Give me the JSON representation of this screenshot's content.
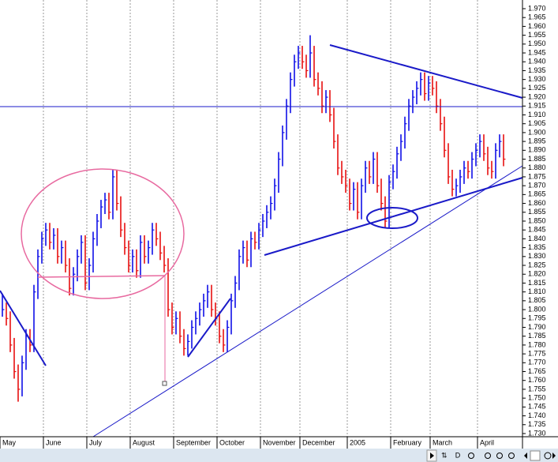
{
  "chart_data": {
    "type": "ohlc",
    "categories": [
      "May",
      null,
      null,
      null,
      null,
      null,
      null,
      null,
      null,
      null,
      null,
      "June",
      null,
      null,
      null,
      null,
      null,
      null,
      null,
      null,
      null,
      null,
      "July",
      null,
      null,
      null,
      null,
      null,
      null,
      null,
      null,
      null,
      null,
      "August",
      null,
      null,
      null,
      null,
      null,
      null,
      null,
      null,
      null,
      null,
      "September",
      null,
      null,
      null,
      null,
      null,
      null,
      null,
      null,
      null,
      null,
      "October",
      null,
      null,
      null,
      null,
      null,
      null,
      null,
      null,
      null,
      null,
      "November",
      null,
      null,
      null,
      null,
      null,
      null,
      null,
      null,
      null,
      "December",
      null,
      null,
      null,
      null,
      null,
      null,
      null,
      null,
      null,
      null,
      null,
      "2005",
      null,
      null,
      null,
      null,
      null,
      null,
      null,
      null,
      null,
      null,
      "February",
      null,
      null,
      null,
      null,
      null,
      null,
      null,
      null,
      null,
      "March",
      null,
      null,
      null,
      null,
      null,
      null,
      null,
      null,
      null,
      null,
      null,
      "April",
      null,
      null,
      null,
      null,
      null,
      null
    ],
    "high": [
      1.809,
      1.804,
      1.799,
      1.784,
      1.769,
      1.774,
      1.789,
      1.789,
      1.814,
      1.834,
      1.844,
      1.849,
      1.849,
      1.846,
      1.846,
      1.839,
      1.839,
      1.829,
      1.824,
      1.834,
      1.842,
      1.842,
      1.829,
      1.844,
      1.854,
      1.862,
      1.866,
      1.866,
      1.879,
      1.879,
      1.864,
      1.849,
      1.839,
      1.834,
      1.834,
      1.842,
      1.842,
      1.839,
      1.849,
      1.849,
      1.844,
      1.836,
      1.829,
      1.804,
      1.799,
      1.799,
      1.789,
      1.786,
      1.794,
      1.799,
      1.804,
      1.809,
      1.814,
      1.814,
      1.804,
      1.799,
      1.789,
      1.794,
      1.809,
      1.819,
      1.834,
      1.839,
      1.839,
      1.844,
      1.844,
      1.849,
      1.854,
      1.859,
      1.864,
      1.874,
      1.889,
      1.904,
      1.919,
      1.934,
      1.944,
      1.949,
      1.949,
      1.944,
      1.955,
      1.949,
      1.934,
      1.929,
      1.924,
      1.924,
      1.914,
      1.899,
      1.884,
      1.879,
      1.874,
      1.872,
      1.872,
      1.874,
      1.884,
      1.884,
      1.889,
      1.889,
      1.874,
      1.864,
      1.876,
      1.882,
      1.892,
      1.899,
      1.909,
      1.919,
      1.924,
      1.929,
      1.934,
      1.934,
      1.932,
      1.932,
      1.929,
      1.919,
      1.909,
      1.894,
      1.879,
      1.874,
      1.879,
      1.884,
      1.884,
      1.889,
      1.894,
      1.899,
      1.899,
      1.892,
      1.884,
      1.894,
      1.899,
      1.899
    ],
    "low": [
      1.796,
      1.791,
      1.776,
      1.761,
      1.748,
      1.751,
      1.766,
      1.776,
      1.776,
      1.806,
      1.826,
      1.836,
      1.834,
      1.834,
      1.826,
      1.826,
      1.821,
      1.808,
      1.808,
      1.816,
      1.826,
      1.811,
      1.811,
      1.821,
      1.836,
      1.846,
      1.854,
      1.851,
      1.851,
      1.856,
      1.841,
      1.831,
      1.821,
      1.821,
      1.818,
      1.818,
      1.826,
      1.826,
      1.831,
      1.836,
      1.828,
      1.821,
      1.796,
      1.786,
      1.786,
      1.781,
      1.774,
      1.774,
      1.778,
      1.786,
      1.791,
      1.796,
      1.801,
      1.796,
      1.791,
      1.781,
      1.776,
      1.776,
      1.786,
      1.801,
      1.811,
      1.826,
      1.824,
      1.824,
      1.834,
      1.834,
      1.841,
      1.846,
      1.851,
      1.856,
      1.866,
      1.881,
      1.896,
      1.911,
      1.926,
      1.936,
      1.936,
      1.931,
      1.931,
      1.926,
      1.921,
      1.911,
      1.911,
      1.906,
      1.891,
      1.876,
      1.871,
      1.866,
      1.856,
      1.856,
      1.851,
      1.851,
      1.866,
      1.871,
      1.871,
      1.866,
      1.856,
      1.846,
      1.846,
      1.868,
      1.874,
      1.884,
      1.891,
      1.901,
      1.911,
      1.916,
      1.921,
      1.918,
      1.918,
      1.921,
      1.911,
      1.901,
      1.886,
      1.871,
      1.864,
      1.864,
      1.866,
      1.871,
      1.874,
      1.874,
      1.881,
      1.886,
      1.884,
      1.876,
      1.874,
      1.874,
      1.886,
      1.881
    ],
    "close": [
      1.8,
      1.795,
      1.78,
      1.765,
      1.755,
      1.77,
      1.785,
      1.78,
      1.81,
      1.83,
      1.84,
      1.845,
      1.838,
      1.842,
      1.83,
      1.835,
      1.825,
      1.812,
      1.82,
      1.83,
      1.838,
      1.815,
      1.825,
      1.84,
      1.85,
      1.858,
      1.862,
      1.855,
      1.875,
      1.86,
      1.845,
      1.835,
      1.825,
      1.83,
      1.822,
      1.838,
      1.83,
      1.835,
      1.845,
      1.84,
      1.832,
      1.825,
      1.8,
      1.79,
      1.795,
      1.785,
      1.778,
      1.782,
      1.79,
      1.795,
      1.8,
      1.805,
      1.81,
      1.8,
      1.795,
      1.785,
      1.78,
      1.79,
      1.805,
      1.815,
      1.83,
      1.835,
      1.828,
      1.84,
      1.838,
      1.845,
      1.85,
      1.855,
      1.86,
      1.87,
      1.885,
      1.9,
      1.915,
      1.93,
      1.94,
      1.945,
      1.94,
      1.935,
      1.945,
      1.93,
      1.925,
      1.915,
      1.92,
      1.91,
      1.895,
      1.88,
      1.875,
      1.87,
      1.86,
      1.868,
      1.855,
      1.87,
      1.88,
      1.875,
      1.885,
      1.87,
      1.86,
      1.85,
      1.872,
      1.878,
      1.888,
      1.895,
      1.905,
      1.915,
      1.92,
      1.925,
      1.93,
      1.922,
      1.928,
      1.925,
      1.915,
      1.905,
      1.89,
      1.875,
      1.868,
      1.87,
      1.875,
      1.88,
      1.878,
      1.885,
      1.89,
      1.895,
      1.888,
      1.88,
      1.878,
      1.89,
      1.895,
      1.885
    ],
    "up_color": "#1010e8",
    "down_color": "#e81010",
    "ylim": [
      1.7282,
      1.9749
    ],
    "yticks": [
      {
        "value": 1.97,
        "label": "1.970"
      },
      {
        "value": 1.965,
        "label": "1.965"
      },
      {
        "value": 1.96,
        "label": "1.960"
      },
      {
        "value": 1.955,
        "label": "1.955"
      },
      {
        "value": 1.95,
        "label": "1.950"
      },
      {
        "value": 1.945,
        "label": "1.945"
      },
      {
        "value": 1.94,
        "label": "1.940"
      },
      {
        "value": 1.935,
        "label": "1.935"
      },
      {
        "value": 1.93,
        "label": "1.930"
      },
      {
        "value": 1.925,
        "label": "1.925"
      },
      {
        "value": 1.92,
        "label": "1.920"
      },
      {
        "value": 1.915,
        "label": "1.915"
      },
      {
        "value": 1.91,
        "label": "1.910"
      },
      {
        "value": 1.905,
        "label": "1.905"
      },
      {
        "value": 1.9,
        "label": "1.900"
      },
      {
        "value": 1.895,
        "label": "1.895"
      },
      {
        "value": 1.89,
        "label": "1.890"
      },
      {
        "value": 1.885,
        "label": "1.885"
      },
      {
        "value": 1.88,
        "label": "1.880"
      },
      {
        "value": 1.875,
        "label": "1.875"
      },
      {
        "value": 1.87,
        "label": "1.870"
      },
      {
        "value": 1.865,
        "label": "1.865"
      },
      {
        "value": 1.86,
        "label": "1.860"
      },
      {
        "value": 1.855,
        "label": "1.855"
      },
      {
        "value": 1.85,
        "label": "1.850"
      },
      {
        "value": 1.845,
        "label": "1.845"
      },
      {
        "value": 1.84,
        "label": "1.840"
      },
      {
        "value": 1.835,
        "label": "1.835"
      },
      {
        "value": 1.83,
        "label": "1.830"
      },
      {
        "value": 1.825,
        "label": "1.825"
      },
      {
        "value": 1.82,
        "label": "1.820"
      },
      {
        "value": 1.815,
        "label": "1.815"
      },
      {
        "value": 1.81,
        "label": "1.810"
      },
      {
        "value": 1.805,
        "label": "1.805"
      },
      {
        "value": 1.8,
        "label": "1.800"
      },
      {
        "value": 1.795,
        "label": "1.795"
      },
      {
        "value": 1.79,
        "label": "1.790"
      },
      {
        "value": 1.785,
        "label": "1.785"
      },
      {
        "value": 1.78,
        "label": "1.780"
      },
      {
        "value": 1.775,
        "label": "1.775"
      },
      {
        "value": 1.77,
        "label": "1.770"
      },
      {
        "value": 1.765,
        "label": "1.765"
      },
      {
        "value": 1.76,
        "label": "1.760"
      },
      {
        "value": 1.755,
        "label": "1.755"
      },
      {
        "value": 1.75,
        "label": "1.750"
      },
      {
        "value": 1.745,
        "label": "1.745"
      },
      {
        "value": 1.74,
        "label": "1.740"
      },
      {
        "value": 1.735,
        "label": "1.735"
      },
      {
        "value": 1.73,
        "label": "1.730"
      }
    ],
    "grid": true
  },
  "toolbar": {
    "period": "D"
  }
}
